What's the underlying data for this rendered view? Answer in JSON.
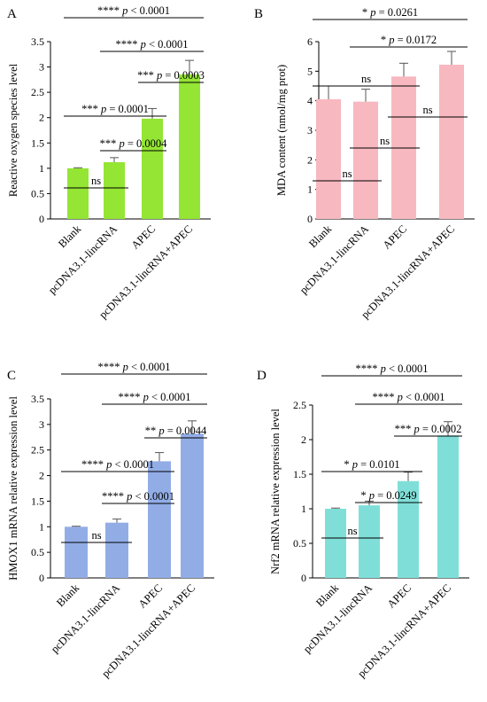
{
  "figure": {
    "categories": [
      "Blank",
      "pcDNA3.1-lincRNA",
      "APEC",
      "pcDNA3.1-lincRNA+APEC"
    ]
  },
  "chart_data": [
    {
      "panel": "A",
      "type": "bar",
      "ylabel": "Reactive oxygen species level",
      "ylim": [
        0,
        3.5
      ],
      "yticks": [
        "0",
        "0.5",
        "1",
        "1.5",
        "2",
        "2.5",
        "3",
        "3.5"
      ],
      "values": [
        1.0,
        1.12,
        1.98,
        2.85
      ],
      "errors": [
        0.01,
        0.09,
        0.2,
        0.28
      ],
      "color": "#94e534",
      "comparisons": [
        {
          "from": 0,
          "to": 1,
          "stars": "",
          "label": "ns"
        },
        {
          "from": 1,
          "to": 2,
          "stars": "***",
          "label": "p = 0.0004"
        },
        {
          "from": 0,
          "to": 2,
          "stars": "***",
          "label": "p = 0.0001"
        },
        {
          "from": 2,
          "to": 3,
          "stars": "***",
          "label": "p = 0.0003"
        },
        {
          "from": 1,
          "to": 3,
          "stars": "****",
          "label": "p < 0.0001"
        },
        {
          "from": 0,
          "to": 3,
          "stars": "****",
          "label": "p < 0.0001"
        }
      ]
    },
    {
      "panel": "B",
      "type": "bar",
      "ylabel": "MDA content (nmol/mg prot)",
      "ylim": [
        0,
        6
      ],
      "yticks": [
        "0",
        "1",
        "2",
        "3",
        "4",
        "5",
        "6"
      ],
      "values": [
        4.05,
        3.97,
        4.82,
        5.22
      ],
      "errors": [
        0.45,
        0.42,
        0.45,
        0.45
      ],
      "color": "#f7b8c0",
      "comparisons": [
        {
          "from": 0,
          "to": 1,
          "stars": "",
          "label": "ns"
        },
        {
          "from": 1,
          "to": 2,
          "stars": "",
          "label": "ns"
        },
        {
          "from": 2,
          "to": 3,
          "stars": "",
          "label": "ns"
        },
        {
          "from": 0,
          "to": 2,
          "stars": "",
          "label": "ns"
        },
        {
          "from": 1,
          "to": 3,
          "stars": "*",
          "label": "p = 0.0172"
        },
        {
          "from": 0,
          "to": 3,
          "stars": "*",
          "label": "p = 0.0261"
        }
      ]
    },
    {
      "panel": "C",
      "type": "bar",
      "ylabel": "HMOX1 mRNA relative expression level",
      "ylim": [
        0,
        3.5
      ],
      "yticks": [
        "0",
        "0.5",
        "1",
        "1.5",
        "2",
        "2.5",
        "3",
        "3.5"
      ],
      "values": [
        1.0,
        1.08,
        2.28,
        2.82
      ],
      "errors": [
        0.01,
        0.07,
        0.17,
        0.25
      ],
      "color": "#92ade6",
      "comparisons": [
        {
          "from": 0,
          "to": 1,
          "stars": "",
          "label": "ns"
        },
        {
          "from": 1,
          "to": 2,
          "stars": "****",
          "label": "p < 0.0001"
        },
        {
          "from": 0,
          "to": 2,
          "stars": "****",
          "label": "p < 0.0001"
        },
        {
          "from": 2,
          "to": 3,
          "stars": "**",
          "label": "p = 0.0044"
        },
        {
          "from": 1,
          "to": 3,
          "stars": "****",
          "label": "p < 0.0001"
        },
        {
          "from": 0,
          "to": 3,
          "stars": "****",
          "label": "p < 0.0001"
        }
      ]
    },
    {
      "panel": "D",
      "type": "bar",
      "ylabel": "Nrf2 mRNA relative expression level",
      "ylim": [
        0,
        2.5
      ],
      "yticks": [
        "0",
        "0.5",
        "1",
        "1.5",
        "2",
        "2.5"
      ],
      "values": [
        1.0,
        1.05,
        1.4,
        2.06
      ],
      "errors": [
        0.01,
        0.06,
        0.13,
        0.2
      ],
      "color": "#7fdfd8",
      "comparisons": [
        {
          "from": 0,
          "to": 1,
          "stars": "",
          "label": "ns"
        },
        {
          "from": 1,
          "to": 2,
          "stars": "*",
          "label": "p = 0.0249"
        },
        {
          "from": 0,
          "to": 2,
          "stars": "*",
          "label": "p = 0.0101"
        },
        {
          "from": 2,
          "to": 3,
          "stars": "***",
          "label": "p = 0.0002"
        },
        {
          "from": 1,
          "to": 3,
          "stars": "****",
          "label": "p < 0.0001"
        },
        {
          "from": 0,
          "to": 3,
          "stars": "****",
          "label": "p < 0.0001"
        }
      ]
    }
  ]
}
